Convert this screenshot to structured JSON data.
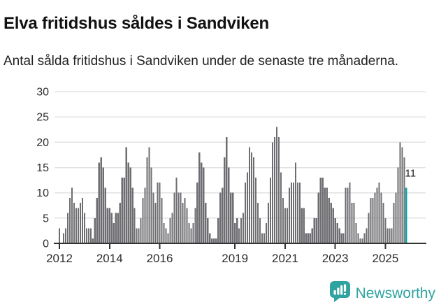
{
  "header": {
    "title": "Elva fritidshus såldes i Sandviken",
    "subtitle": "Antal sålda fritidshus i Sandviken under de senaste tre månaderna."
  },
  "branding": {
    "name": "Newsworthy"
  },
  "colors": {
    "bar": "#6e6e72",
    "highlight": "#00a0a5",
    "grid": "#e2e2e2",
    "axis": "#333333",
    "tick_text": "#2d2d2d",
    "annotation_text": "#1a1a1a",
    "brand": "#2fa3a0"
  },
  "chart_data": {
    "type": "bar",
    "title": "Elva fritidshus såldes i Sandviken",
    "subtitle": "Antal sålda fritidshus i Sandviken under de senaste tre månaderna.",
    "unit": "fritidshus per 3 månader",
    "start_year": 2012,
    "start_month": 1,
    "x_tick_years": [
      2012,
      2014,
      2016,
      2019,
      2021,
      2023,
      2025
    ],
    "x_tick_labels": [
      "2012",
      "2014",
      "2016",
      "2019",
      "2021",
      "2023",
      "2025"
    ],
    "y_ticks": [
      0,
      5,
      10,
      15,
      20,
      25,
      30
    ],
    "ylim": [
      0,
      30
    ],
    "grid": true,
    "highlight_last": true,
    "highlight_value": 11,
    "annotation_label": "11",
    "values": [
      3,
      0,
      2,
      3,
      6,
      9,
      11,
      8,
      7,
      7,
      8,
      9,
      6,
      3,
      3,
      3,
      1,
      5,
      9,
      16,
      17,
      15,
      11,
      7,
      7,
      6,
      4,
      6,
      6,
      8,
      13,
      13,
      19,
      16,
      15,
      11,
      7,
      3,
      3,
      5,
      9,
      11,
      17,
      19,
      15,
      10,
      8,
      12,
      12,
      9,
      4,
      3,
      2,
      5,
      6,
      10,
      13,
      10,
      10,
      8,
      9,
      7,
      4,
      3,
      4,
      7,
      12,
      18,
      16,
      15,
      8,
      5,
      2,
      1,
      1,
      1,
      5,
      10,
      11,
      17,
      21,
      15,
      10,
      10,
      4,
      5,
      3,
      5,
      6,
      12,
      14,
      19,
      18,
      17,
      13,
      8,
      5,
      2,
      2,
      4,
      8,
      13,
      20,
      21,
      23,
      21,
      14,
      9,
      7,
      7,
      11,
      12,
      12,
      16,
      12,
      12,
      7,
      7,
      2,
      2,
      2,
      3,
      5,
      5,
      10,
      13,
      13,
      11,
      11,
      9,
      8,
      7,
      5,
      4,
      3,
      2,
      2,
      11,
      11,
      12,
      8,
      8,
      4,
      2,
      1,
      1,
      2,
      3,
      6,
      9,
      9,
      10,
      11,
      12,
      10,
      8,
      5,
      3,
      3,
      3,
      8,
      10,
      15,
      20,
      19,
      17,
      11
    ]
  }
}
